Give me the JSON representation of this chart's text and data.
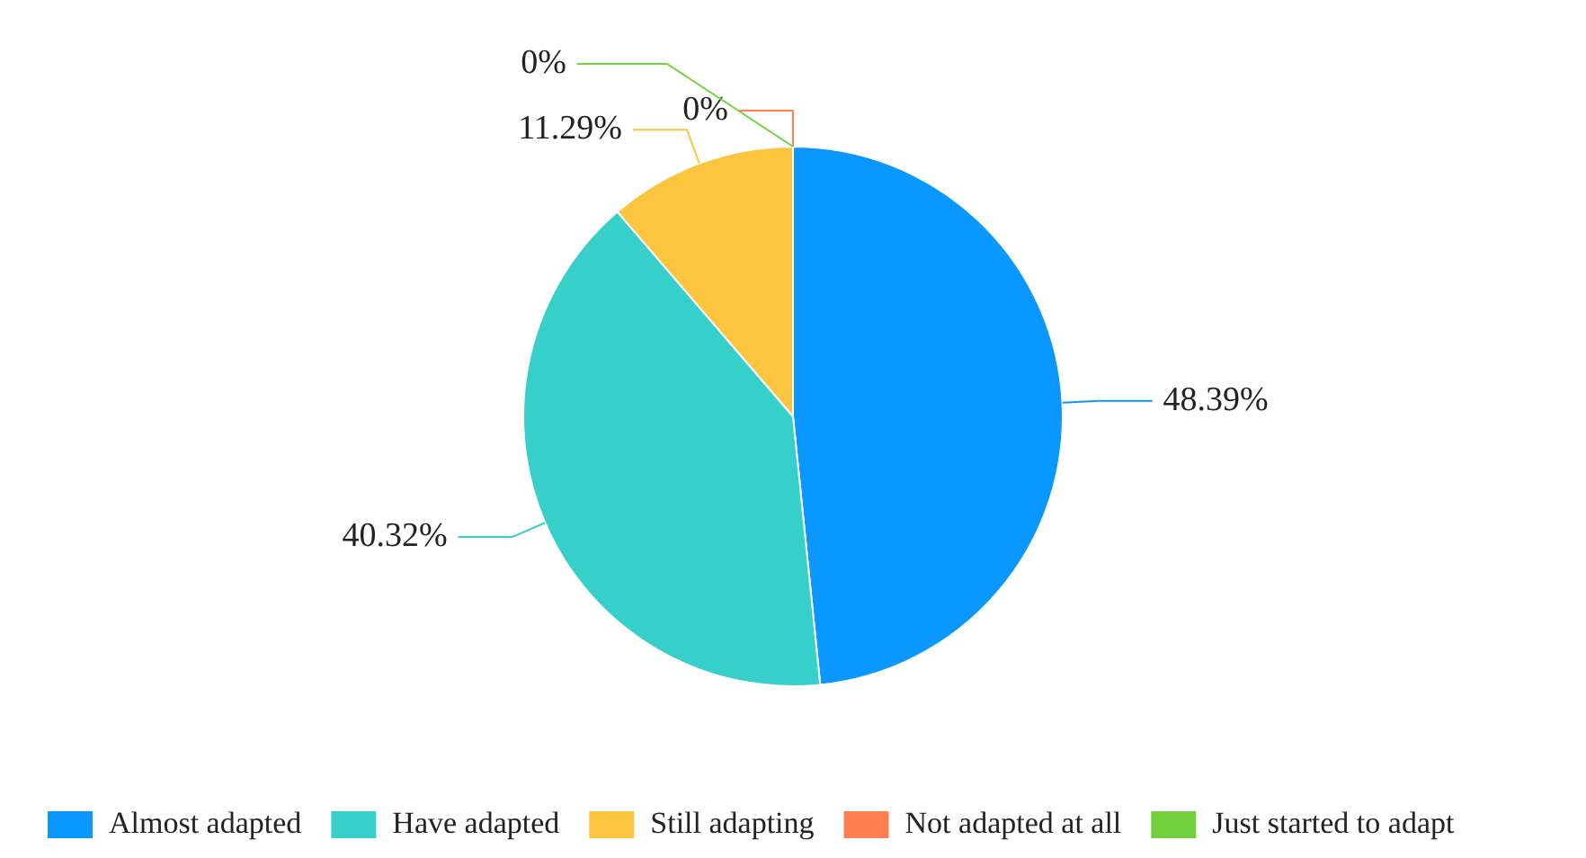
{
  "chart_data": {
    "type": "pie",
    "categories": [
      "Almost adapted",
      "Have adapted",
      "Still adapting",
      "Not adapted at all",
      "Just started to adapt"
    ],
    "values": [
      48.39,
      40.32,
      11.29,
      0,
      0
    ],
    "colors": [
      "#0a97ff",
      "#37cfc9",
      "#fdc53d",
      "#ff7f50",
      "#73d13d"
    ],
    "value_labels": [
      "48.39%",
      "40.32%",
      "11.29%",
      "0%",
      "0%"
    ],
    "legend": "bottom"
  }
}
